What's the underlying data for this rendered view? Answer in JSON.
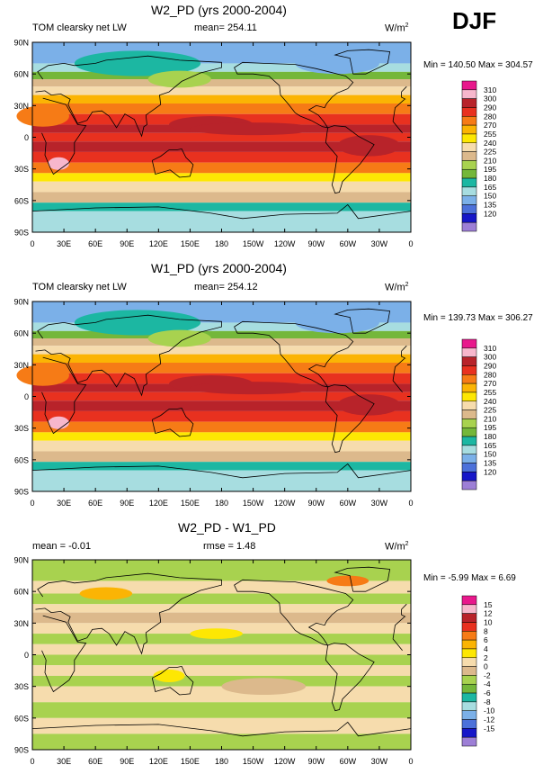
{
  "season": "DJF",
  "unit_base": "W/m",
  "unit_exp": "2",
  "lat_ticks": [
    "90N",
    "60N",
    "30N",
    "0",
    "30S",
    "60S",
    "90S"
  ],
  "lon_ticks": [
    "0",
    "30E",
    "60E",
    "90E",
    "120E",
    "150E",
    "180",
    "150W",
    "120W",
    "90W",
    "60W",
    "30W",
    "0"
  ],
  "panels": [
    {
      "title": "W2_PD (yrs 2000-2004)",
      "left_label": "TOM clearsky net LW",
      "stat_label": "mean=",
      "stat_value": "254.11",
      "stat2_label": "",
      "stat2_value": "",
      "minmax": "Min = 140.50 Max = 304.57",
      "levels": [
        "310",
        "300",
        "290",
        "280",
        "270",
        "255",
        "240",
        "225",
        "210",
        "195",
        "180",
        "165",
        "150",
        "135",
        "120"
      ],
      "colors": [
        "#e8188c",
        "#f7b7cc",
        "#b8232a",
        "#e8311f",
        "#f67b16",
        "#fbb404",
        "#fde703",
        "#f6dcad",
        "#dcb98c",
        "#a8d24f",
        "#74b73a",
        "#1cb7a2",
        "#a7dde0",
        "#7bb0e8",
        "#4c71da",
        "#1616c8",
        "#9d7fd6"
      ],
      "field": "mean"
    },
    {
      "title": "W1_PD (yrs 2000-2004)",
      "left_label": "TOM clearsky net LW",
      "stat_label": "mean=",
      "stat_value": "254.12",
      "stat2_label": "",
      "stat2_value": "",
      "minmax": "Min = 139.73 Max = 306.27",
      "levels": [
        "310",
        "300",
        "290",
        "280",
        "270",
        "255",
        "240",
        "225",
        "210",
        "195",
        "180",
        "165",
        "150",
        "135",
        "120"
      ],
      "colors": [
        "#e8188c",
        "#f7b7cc",
        "#b8232a",
        "#e8311f",
        "#f67b16",
        "#fbb404",
        "#fde703",
        "#f6dcad",
        "#dcb98c",
        "#a8d24f",
        "#74b73a",
        "#1cb7a2",
        "#a7dde0",
        "#7bb0e8",
        "#4c71da",
        "#1616c8",
        "#9d7fd6"
      ],
      "field": "mean"
    },
    {
      "title": "W2_PD - W1_PD",
      "left_label": "mean =",
      "stat_label": "rmse =",
      "stat_value": "1.48",
      "left_value": "-0.01",
      "stat2_label": "",
      "stat2_value": "",
      "minmax": "Min = -5.99 Max =  6.69",
      "levels": [
        "15",
        "12",
        "10",
        "8",
        "6",
        "4",
        "2",
        "0",
        "-2",
        "-4",
        "-6",
        "-8",
        "-10",
        "-12",
        "-15"
      ],
      "colors": [
        "#e8188c",
        "#f7b7cc",
        "#b8232a",
        "#e8311f",
        "#f67b16",
        "#fbb404",
        "#fde703",
        "#f6dcad",
        "#dcb98c",
        "#a8d24f",
        "#74b73a",
        "#1cb7a2",
        "#a7dde0",
        "#7bb0e8",
        "#4c71da",
        "#1616c8",
        "#9d7fd6"
      ],
      "field": "diff"
    }
  ]
}
